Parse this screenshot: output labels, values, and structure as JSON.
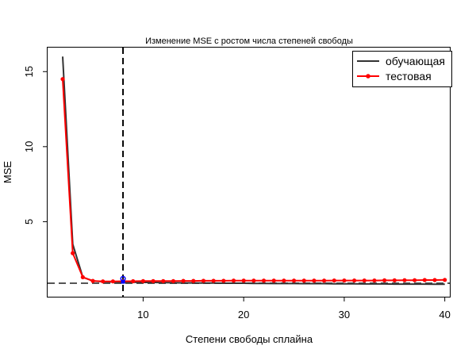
{
  "chart_data": {
    "type": "line",
    "title": "Изменение MSE с ростом числа степеней свободы",
    "xlabel": "Степени свободы сплайна",
    "ylabel": "MSE",
    "xlim": [
      0.5,
      40.5
    ],
    "ylim": [
      0,
      16.6
    ],
    "xticks": [
      10,
      20,
      30,
      40
    ],
    "yticks": [
      5,
      10,
      15
    ],
    "grid": false,
    "legend_position": "top-right",
    "vline": {
      "x": 8,
      "style": "dashed",
      "color": "#000000"
    },
    "hline": {
      "y": 0.9,
      "style": "dashed",
      "color": "#555555"
    },
    "highlight_point": {
      "x": 8,
      "y": 1.2,
      "color": "#0000ff"
    },
    "series": [
      {
        "name": "обучающая",
        "color": "#333333",
        "marker": false,
        "x": [
          2,
          3,
          4,
          5,
          6,
          7,
          8,
          9,
          10,
          11,
          12,
          13,
          14,
          15,
          16,
          17,
          18,
          19,
          20,
          21,
          22,
          23,
          24,
          25,
          26,
          27,
          28,
          29,
          30,
          31,
          32,
          33,
          34,
          35,
          36,
          37,
          38,
          39,
          40
        ],
        "values": [
          16.0,
          3.5,
          1.3,
          1.05,
          1.0,
          0.98,
          0.97,
          0.96,
          0.95,
          0.95,
          0.94,
          0.93,
          0.92,
          0.92,
          0.91,
          0.91,
          0.9,
          0.9,
          0.9,
          0.89,
          0.89,
          0.88,
          0.88,
          0.88,
          0.87,
          0.87,
          0.87,
          0.86,
          0.86,
          0.86,
          0.85,
          0.85,
          0.85,
          0.84,
          0.84,
          0.84,
          0.84,
          0.83,
          0.83
        ]
      },
      {
        "name": "тестовая",
        "color": "#ff0000",
        "marker": true,
        "x": [
          2,
          3,
          4,
          5,
          6,
          7,
          8,
          9,
          10,
          11,
          12,
          13,
          14,
          15,
          16,
          17,
          18,
          19,
          20,
          21,
          22,
          23,
          24,
          25,
          26,
          27,
          28,
          29,
          30,
          31,
          32,
          33,
          34,
          35,
          36,
          37,
          38,
          39,
          40
        ],
        "values": [
          14.5,
          2.9,
          1.3,
          1.05,
          1.02,
          1.02,
          1.03,
          1.03,
          1.04,
          1.04,
          1.04,
          1.04,
          1.05,
          1.05,
          1.06,
          1.06,
          1.06,
          1.07,
          1.07,
          1.07,
          1.07,
          1.07,
          1.07,
          1.07,
          1.07,
          1.07,
          1.07,
          1.08,
          1.08,
          1.08,
          1.08,
          1.08,
          1.09,
          1.09,
          1.1,
          1.1,
          1.11,
          1.11,
          1.12
        ]
      }
    ]
  }
}
